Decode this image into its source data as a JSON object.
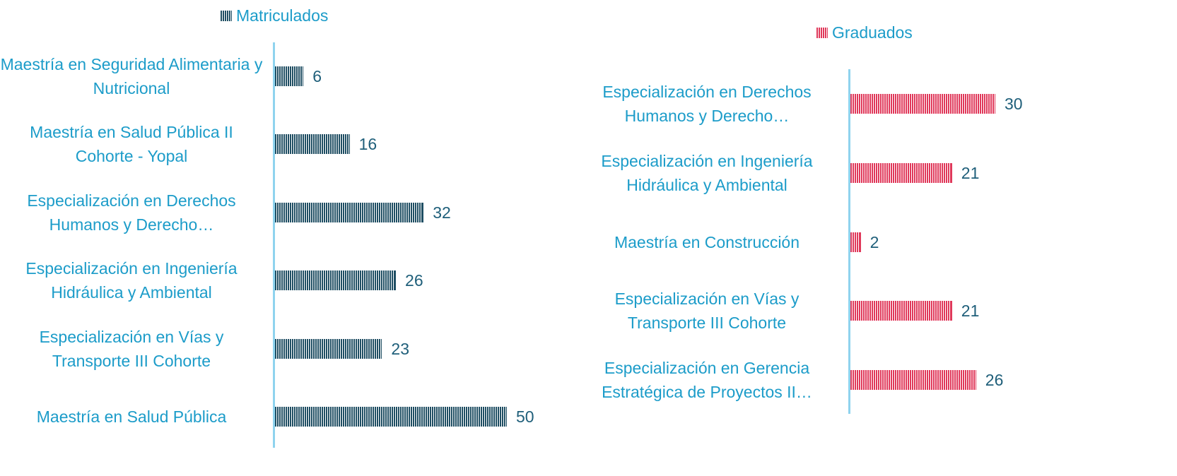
{
  "chart_data": [
    {
      "type": "bar",
      "categories": [
        "Maestría en Seguridad Alimentaria y Nutricional",
        "Maestría en Salud Pública II Cohorte - Yopal",
        "Especialización en Derechos Humanos y Derecho…",
        "Especialización en Ingeniería Hidráulica y Ambiental",
        "Especialización en Vías y Transporte III Cohorte",
        "Maestría en Salud Pública"
      ],
      "series": [
        {
          "name": "Matriculados",
          "color": "#1f4e63",
          "values": [
            6,
            16,
            32,
            26,
            23,
            50
          ]
        }
      ]
    },
    {
      "type": "bar",
      "categories": [
        "Especialización en Derechos Humanos y Derecho…",
        "Especialización en Ingeniería Hidráulica y Ambiental",
        "Maestría en Construcción",
        "Especialización en Vías y Transporte III Cohorte",
        "Especialización en Gerencia Estratégica de Proyectos II…"
      ],
      "series": [
        {
          "name": "Graduados",
          "color": "#e0385a",
          "values": [
            30,
            21,
            2,
            21,
            26
          ]
        }
      ]
    }
  ]
}
